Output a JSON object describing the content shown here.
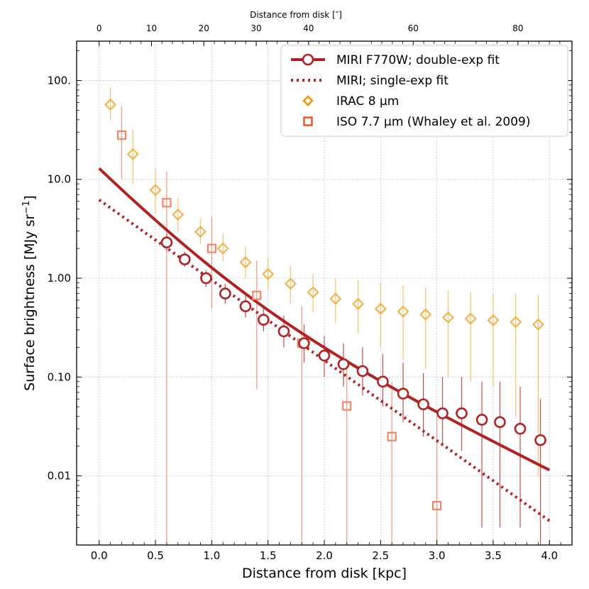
{
  "chart_data": {
    "type": "scatter",
    "xlabel": "Distance from disk [kpc]",
    "ylabel": "Surface brightness [MJy sr",
    "ylabel_exp": "−1",
    "ylabel_end": "]",
    "top_xlabel": "Distance from disk [″]",
    "xlim": [
      -0.2,
      4.2
    ],
    "ylim": [
      0.002,
      250
    ],
    "yscale": "log",
    "grid": true,
    "legend_position": "top-right",
    "x_ticks": [
      {
        "value": 0.0,
        "label": "0.0"
      },
      {
        "value": 0.5,
        "label": "0.5"
      },
      {
        "value": 1.0,
        "label": "1.0"
      },
      {
        "value": 1.5,
        "label": "1.5"
      },
      {
        "value": 2.0,
        "label": "2.0"
      },
      {
        "value": 2.5,
        "label": "2.5"
      },
      {
        "value": 3.0,
        "label": "3.0"
      },
      {
        "value": 3.5,
        "label": "3.5"
      },
      {
        "value": 4.0,
        "label": "4.0"
      }
    ],
    "y_ticks": [
      {
        "value": 0.01,
        "label": "0.01"
      },
      {
        "value": 0.1,
        "label": "0.10"
      },
      {
        "value": 1,
        "label": "1.00"
      },
      {
        "value": 10,
        "label": "10.0"
      },
      {
        "value": 100,
        "label": "100."
      }
    ],
    "top_ticks": [
      {
        "arcsec": 0,
        "label": "0"
      },
      {
        "arcsec": 10,
        "label": "10"
      },
      {
        "arcsec": 20,
        "label": "20"
      },
      {
        "arcsec": 30,
        "label": "30"
      },
      {
        "arcsec": 40,
        "label": "40"
      },
      {
        "arcsec": 60,
        "label": "60"
      },
      {
        "arcsec": 80,
        "label": "80"
      }
    ],
    "top_tick_kpc_per_arcsec": 0.0465,
    "series": [
      {
        "name": "MIRI F770W; double-exp fit",
        "kind": "line_markers",
        "color": "#b22222",
        "fit_curve": {
          "a1": 10.9,
          "s1": 0.37,
          "a2": 2.0,
          "s2": 0.772,
          "x_range": [
            0.0,
            4.0
          ]
        },
        "points": [
          {
            "x": 0.6,
            "y": 2.3,
            "ylo": 1.9,
            "yhi": 2.8
          },
          {
            "x": 0.76,
            "y": 1.55,
            "ylo": 1.3,
            "yhi": 1.85
          },
          {
            "x": 0.95,
            "y": 1.0,
            "ylo": 0.82,
            "yhi": 1.2
          },
          {
            "x": 1.12,
            "y": 0.7,
            "ylo": 0.55,
            "yhi": 0.88
          },
          {
            "x": 1.3,
            "y": 0.52,
            "ylo": 0.4,
            "yhi": 0.68
          },
          {
            "x": 1.46,
            "y": 0.38,
            "ylo": 0.29,
            "yhi": 0.5
          },
          {
            "x": 1.64,
            "y": 0.29,
            "ylo": 0.2,
            "yhi": 0.42
          },
          {
            "x": 1.82,
            "y": 0.22,
            "ylo": 0.14,
            "yhi": 0.34
          },
          {
            "x": 2.0,
            "y": 0.165,
            "ylo": 0.1,
            "yhi": 0.26
          },
          {
            "x": 2.17,
            "y": 0.135,
            "ylo": 0.08,
            "yhi": 0.22
          },
          {
            "x": 2.34,
            "y": 0.115,
            "ylo": 0.065,
            "yhi": 0.2
          },
          {
            "x": 2.52,
            "y": 0.09,
            "ylo": 0.05,
            "yhi": 0.17
          },
          {
            "x": 2.7,
            "y": 0.068,
            "ylo": 0.035,
            "yhi": 0.14
          },
          {
            "x": 2.88,
            "y": 0.053,
            "ylo": 0.025,
            "yhi": 0.11
          },
          {
            "x": 3.05,
            "y": 0.043,
            "ylo": 0.02,
            "yhi": 0.1
          },
          {
            "x": 3.22,
            "y": 0.043,
            "ylo": 0.018,
            "yhi": 0.1
          },
          {
            "x": 3.4,
            "y": 0.037,
            "ylo": 0.003,
            "yhi": 0.09
          },
          {
            "x": 3.56,
            "y": 0.035,
            "ylo": 0.003,
            "yhi": 0.09
          },
          {
            "x": 3.74,
            "y": 0.03,
            "ylo": 0.003,
            "yhi": 0.08
          },
          {
            "x": 3.92,
            "y": 0.023,
            "ylo": 0.002,
            "yhi": 0.06
          }
        ]
      },
      {
        "name": "MIRI; single-exp fit",
        "kind": "dotted_line",
        "color": "#b22222",
        "fit_curve": {
          "a": 6.2,
          "s": 0.535,
          "x_range": [
            0.0,
            4.0
          ]
        }
      },
      {
        "name": "IRAC 8 μm",
        "kind": "diamond_markers",
        "color": "#f0a830",
        "legend_color": "#ff8c00",
        "points": [
          {
            "x": 0.1,
            "y": 57,
            "ylo": 40,
            "yhi": 85
          },
          {
            "x": 0.3,
            "y": 18,
            "ylo": 9,
            "yhi": 32
          },
          {
            "x": 0.5,
            "y": 7.8,
            "ylo": 4.5,
            "yhi": 13
          },
          {
            "x": 0.7,
            "y": 4.4,
            "ylo": 3.0,
            "yhi": 6.5
          },
          {
            "x": 0.9,
            "y": 2.95,
            "ylo": 2.2,
            "yhi": 4.0
          },
          {
            "x": 1.1,
            "y": 2.0,
            "ylo": 1.5,
            "yhi": 2.8
          },
          {
            "x": 1.3,
            "y": 1.45,
            "ylo": 1.0,
            "yhi": 2.1
          },
          {
            "x": 1.5,
            "y": 1.1,
            "ylo": 0.75,
            "yhi": 1.6
          },
          {
            "x": 1.7,
            "y": 0.88,
            "ylo": 0.55,
            "yhi": 1.35
          },
          {
            "x": 1.9,
            "y": 0.72,
            "ylo": 0.45,
            "yhi": 1.1
          },
          {
            "x": 2.1,
            "y": 0.62,
            "ylo": 0.35,
            "yhi": 1.0
          },
          {
            "x": 2.3,
            "y": 0.55,
            "ylo": 0.28,
            "yhi": 0.95
          },
          {
            "x": 2.5,
            "y": 0.49,
            "ylo": 0.2,
            "yhi": 0.9
          },
          {
            "x": 2.7,
            "y": 0.46,
            "ylo": 0.15,
            "yhi": 0.85
          },
          {
            "x": 2.9,
            "y": 0.43,
            "ylo": 0.12,
            "yhi": 0.8
          },
          {
            "x": 3.1,
            "y": 0.4,
            "ylo": 0.1,
            "yhi": 0.75
          },
          {
            "x": 3.3,
            "y": 0.39,
            "ylo": 0.09,
            "yhi": 0.72
          },
          {
            "x": 3.5,
            "y": 0.375,
            "ylo": 0.08,
            "yhi": 0.7
          },
          {
            "x": 3.7,
            "y": 0.36,
            "ylo": 0.04,
            "yhi": 0.7
          },
          {
            "x": 3.9,
            "y": 0.34,
            "ylo": 0.01,
            "yhi": 0.68
          }
        ]
      },
      {
        "name": "ISO 7.7 μm (Whaley et al. 2009)",
        "kind": "square_markers",
        "color": "#f4846a",
        "legend_color": "#f05020",
        "points": [
          {
            "x": 0.2,
            "y": 28,
            "ylo": 10,
            "yhi": 55
          },
          {
            "x": 0.6,
            "y": 5.8,
            "ylo": 0.002,
            "yhi": 12
          },
          {
            "x": 1.0,
            "y": 2.0,
            "ylo": 0.5,
            "yhi": 4.2
          },
          {
            "x": 1.4,
            "y": 0.67,
            "ylo": 0.075,
            "yhi": 1.5
          },
          {
            "x": 1.8,
            "y": 0.22,
            "ylo": 0.002,
            "yhi": 0.52
          },
          {
            "x": 2.2,
            "y": 0.051,
            "ylo": 0.002,
            "yhi": 0.15
          },
          {
            "x": 2.6,
            "y": 0.025,
            "ylo": 0.002,
            "yhi": 0.09
          },
          {
            "x": 3.0,
            "y": 0.005,
            "ylo": 0.002,
            "yhi": 0.04
          }
        ]
      }
    ]
  }
}
